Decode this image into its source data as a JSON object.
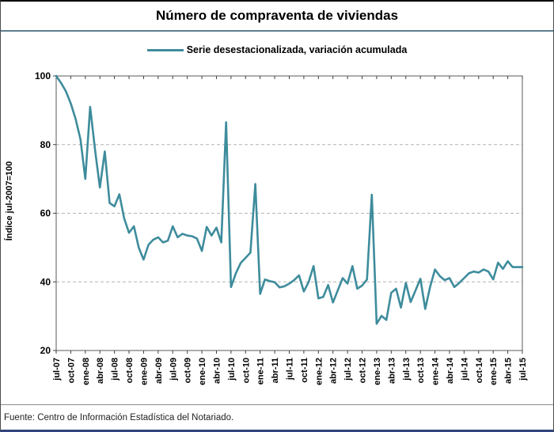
{
  "title": "Número de compraventa de viviendas",
  "legend": {
    "label": "Serie desestacionalizada, variación acumulada"
  },
  "footer": {
    "source": "Fuente: Centro de Información Estadística del Notariado."
  },
  "colors": {
    "line": "#3e8c9c",
    "title_separator": "#5d7f90",
    "grid": "#b3b3b3",
    "axis": "#595959",
    "bottom_border": "#33457c"
  },
  "chart_data": {
    "type": "line",
    "title": "Número de compraventa de viviendas",
    "xlabel": "",
    "ylabel": "Índice jul-2007=100",
    "ylim": [
      20,
      100
    ],
    "yticks": [
      20,
      40,
      60,
      80,
      100
    ],
    "grid": "horizontal-dashed",
    "legend_position": "top-center",
    "x_frequency": "monthly",
    "x_range": [
      "jul-07",
      "jul-15"
    ],
    "x_tick_labels": [
      "jul-07",
      "oct-07",
      "ene-08",
      "abr-08",
      "jul-08",
      "oct-08",
      "ene-09",
      "abr-09",
      "jul-09",
      "oct-09",
      "ene-10",
      "abr-10",
      "jul-10",
      "oct-10",
      "ene-11",
      "abr-11",
      "jul-11",
      "oct-11",
      "ene-12",
      "abr-12",
      "jul-12",
      "oct-12",
      "ene-13",
      "abr-13",
      "jul-13",
      "oct-13",
      "ene-14",
      "abr-14",
      "jul-14",
      "oct-14",
      "ene-15",
      "abr-15",
      "jul-15"
    ],
    "series": [
      {
        "name": "Serie desestacionalizada, variación acumulada",
        "color": "#3e8c9c",
        "values": [
          100,
          98,
          95.5,
          92,
          87.5,
          81.5,
          70,
          91,
          78.5,
          67.5,
          78,
          63,
          62,
          65.5,
          58.5,
          54.3,
          56.2,
          50,
          46.5,
          50.8,
          52.3,
          53,
          51.5,
          52,
          56.2,
          53,
          54,
          53.5,
          53.3,
          52.6,
          49,
          56,
          53.5,
          55.8,
          51.5,
          86.5,
          38.5,
          42.5,
          45.5,
          47,
          48.5,
          68.5,
          36.5,
          40.7,
          40.2,
          39.9,
          38.4,
          38.7,
          39.5,
          40.5,
          41.9,
          37.2,
          40,
          44.6,
          35.2,
          35.6,
          39.1,
          34,
          37.6,
          41.1,
          39.5,
          44.6,
          38,
          38.9,
          40.7,
          65.4,
          27.8,
          30.1,
          28.9,
          36.8,
          38,
          32.5,
          39.7,
          34.1,
          37.5,
          40.9,
          32.1,
          38.5,
          43.6,
          41.7,
          40.5,
          41.1,
          38.5,
          39.7,
          41.1,
          42.5,
          43,
          42.7,
          43.6,
          43,
          40.7,
          45.6,
          43.8,
          46,
          44.3,
          44.3,
          44.3
        ]
      }
    ]
  }
}
